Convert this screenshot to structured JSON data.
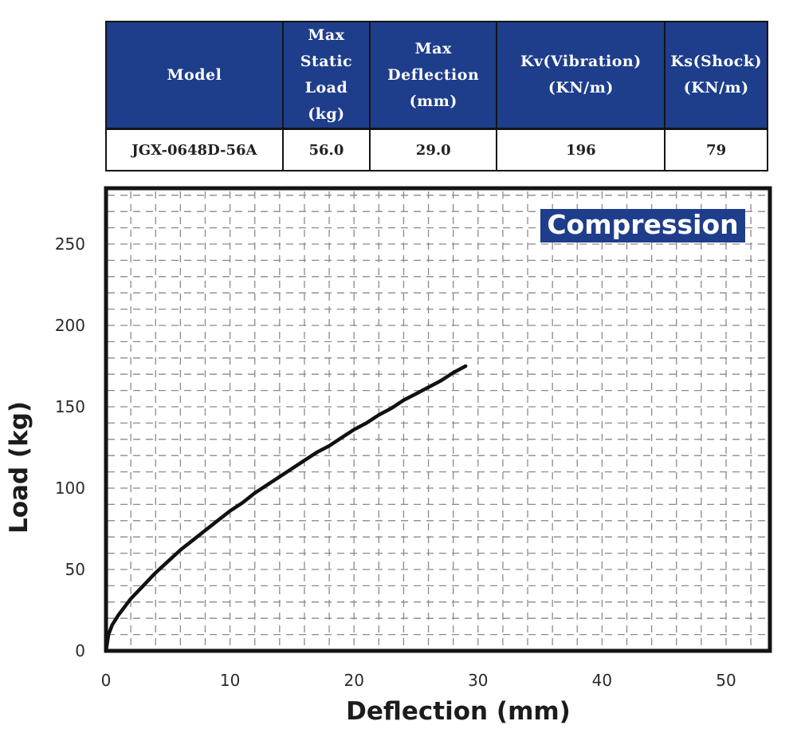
{
  "table": {
    "headers": [
      "Max Static Load (kg)",
      "Max Deflection (mm)",
      "Kv(Vibration) (KN/m)",
      "Ks(Shock) (KN/m)"
    ],
    "header_lines": [
      [
        "Model"
      ],
      [
        "Max",
        "Static",
        "Load",
        "(kg)"
      ],
      [
        "Max",
        "Deflection",
        "(mm)"
      ],
      [
        "Kv(Vibration)",
        "(KN/m)"
      ],
      [
        "Ks(Shock)",
        "(KN/m)"
      ]
    ],
    "row": {
      "model": "JGX-0648D-56A",
      "max_static_load": "56.0",
      "max_deflection": "29.0",
      "kv": "196",
      "ks": "79"
    }
  },
  "colors": {
    "header_bg": "#1e3e8c",
    "badge_bg": "#1e3e8c",
    "curve": "#111111",
    "grid": "#8a8a8a"
  },
  "chart_data": {
    "type": "line",
    "badge": "Compression",
    "xlabel": "Deflection (mm)",
    "ylabel": "Load (kg)",
    "xlim": [
      0,
      54
    ],
    "ylim": [
      0,
      285
    ],
    "x_ticks": [
      0,
      10,
      20,
      30,
      40,
      50
    ],
    "y_ticks": [
      0,
      50,
      100,
      150,
      200,
      250
    ],
    "grid": true,
    "series": [
      {
        "x": [
          0,
          0.2,
          0.5,
          1,
          2,
          3,
          4,
          5,
          6,
          7,
          8,
          9,
          10,
          11,
          12,
          13,
          14,
          15,
          16,
          17,
          18,
          19,
          20,
          21,
          22,
          23,
          24,
          25,
          26,
          27,
          28,
          29
        ],
        "values": [
          0,
          10,
          16,
          22,
          32,
          40,
          48,
          55,
          62,
          68,
          74,
          80,
          86,
          91,
          97,
          102,
          107,
          112,
          117,
          122,
          126,
          131,
          136,
          140,
          145,
          149,
          154,
          158,
          162,
          166,
          171,
          175
        ]
      }
    ]
  }
}
